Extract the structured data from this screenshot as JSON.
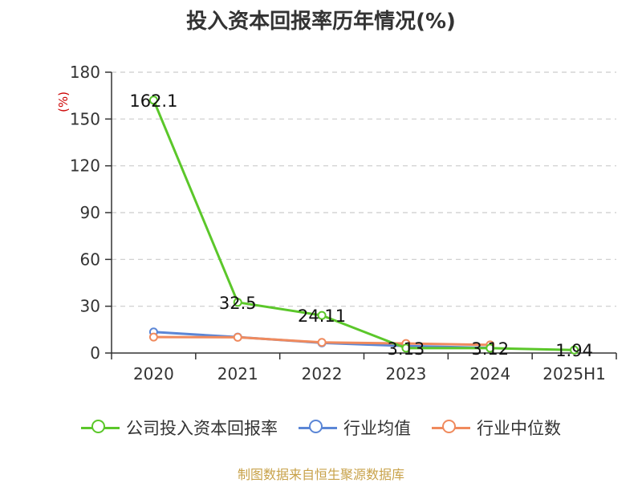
{
  "chart_data": {
    "type": "line",
    "title": "投入资本回报率历年情况(%)",
    "ylabel": "(%)",
    "categories": [
      "2020",
      "2021",
      "2022",
      "2023",
      "2024",
      "2025H1"
    ],
    "ylim": [
      0,
      180
    ],
    "yticks": [
      0,
      30,
      60,
      90,
      120,
      150,
      180
    ],
    "grid": true,
    "legend_position": "bottom",
    "series": [
      {
        "name": "公司投入资本回报率",
        "color": "#5bc72a",
        "values": [
          162.1,
          32.5,
          24.11,
          3.13,
          3.12,
          1.94
        ],
        "labels": [
          "162.1",
          "32.5",
          "24.11",
          "3.13",
          "3.12",
          "1.94"
        ]
      },
      {
        "name": "行业均值",
        "color": "#5b86d6",
        "values": [
          13.5,
          10.2,
          6.5,
          4.5,
          3.3,
          null
        ]
      },
      {
        "name": "行业中位数",
        "color": "#f08a5d",
        "values": [
          10.2,
          10.1,
          6.8,
          6.1,
          5.2,
          null
        ]
      }
    ]
  },
  "source": "制图数据来自恒生聚源数据库"
}
